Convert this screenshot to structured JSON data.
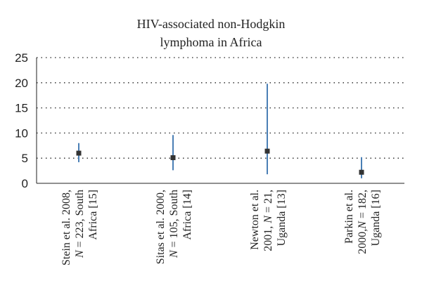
{
  "chart_data": {
    "type": "errorbar",
    "title": [
      "HIV-associated non-Hodgkin",
      "lymphoma in Africa"
    ],
    "xlabel": "",
    "ylabel": "",
    "ylim": [
      0,
      25
    ],
    "yticks": [
      "0",
      "5",
      "10",
      "15",
      "20",
      "25"
    ],
    "grid": true,
    "series_color": "#4a7fb5",
    "marker_color": "#333333",
    "categories": [
      {
        "label_lines": [
          {
            "parts": [
              {
                "t": "Stein et al. 2008,",
                "i": false
              }
            ]
          },
          {
            "parts": [
              {
                "t": "N",
                "i": true
              },
              {
                "t": " = 223, South",
                "i": false
              }
            ]
          },
          {
            "parts": [
              {
                "t": "Africa [15]",
                "i": false
              }
            ]
          }
        ]
      },
      {
        "label_lines": [
          {
            "parts": [
              {
                "t": "Sitas et al. 2000,",
                "i": false
              }
            ]
          },
          {
            "parts": [
              {
                "t": "N",
                "i": true
              },
              {
                "t": " = 105, South",
                "i": false
              }
            ]
          },
          {
            "parts": [
              {
                "t": "Africa [14]",
                "i": false
              }
            ]
          }
        ]
      },
      {
        "label_lines": [
          {
            "parts": [
              {
                "t": "Newton et al.",
                "i": false
              }
            ]
          },
          {
            "parts": [
              {
                "t": "2001, ",
                "i": false
              },
              {
                "t": "N",
                "i": true
              },
              {
                "t": " = 21,",
                "i": false
              }
            ]
          },
          {
            "parts": [
              {
                "t": "Uganda [13]",
                "i": false
              }
            ]
          }
        ]
      },
      {
        "label_lines": [
          {
            "parts": [
              {
                "t": "Parkin et al.",
                "i": false
              }
            ]
          },
          {
            "parts": [
              {
                "t": "2000,",
                "i": false
              },
              {
                "t": "N",
                "i": true
              },
              {
                "t": " = 182,",
                "i": false
              }
            ]
          },
          {
            "parts": [
              {
                "t": "Uganda [16]",
                "i": false
              }
            ]
          }
        ]
      }
    ],
    "values": [
      6.0,
      5.1,
      6.4,
      2.2
    ],
    "lower": [
      4.2,
      2.6,
      1.8,
      1.0
    ],
    "upper": [
      8.0,
      9.6,
      19.8,
      5.2
    ]
  }
}
